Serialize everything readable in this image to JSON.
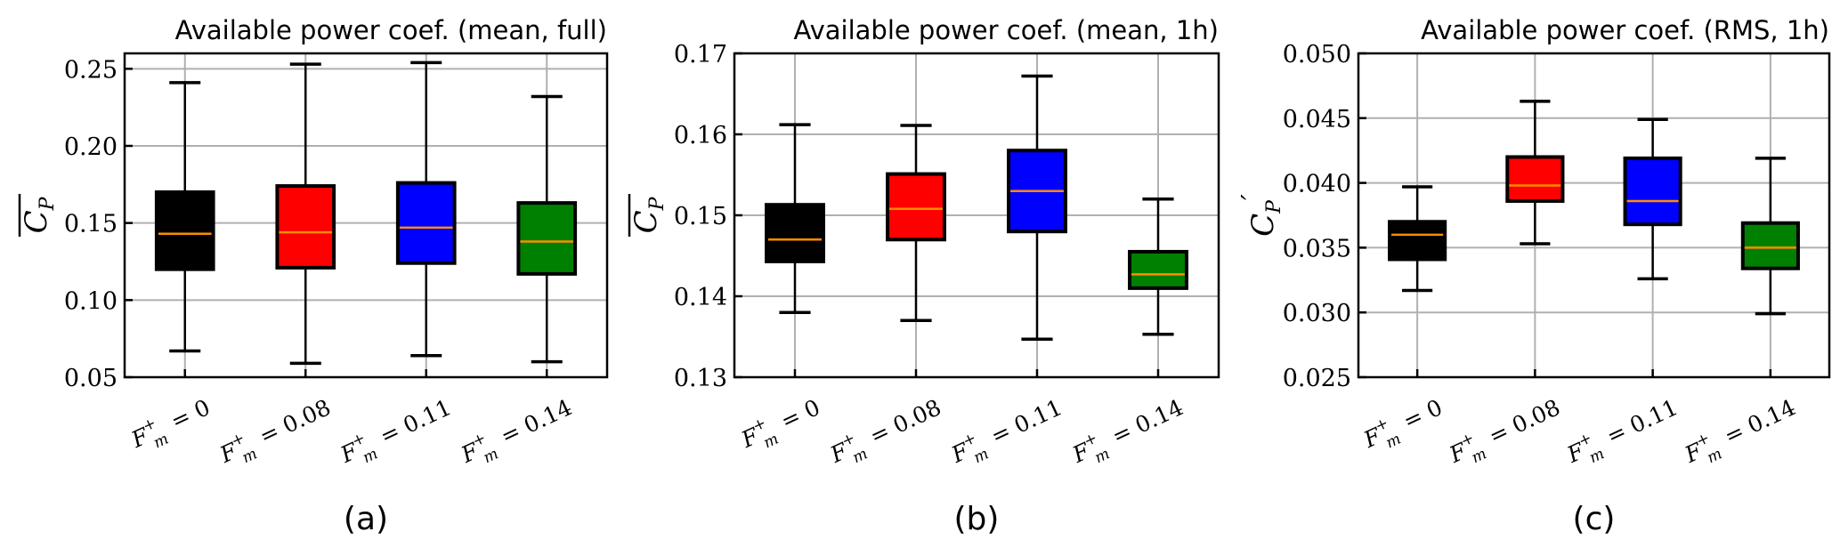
{
  "chart_data": [
    {
      "type": "box",
      "title": "Available power coef. (mean, full)",
      "ylabel": {
        "base": "C",
        "sub": "P",
        "overline": true,
        "prime": false
      },
      "panel_label": "(a)",
      "ylim": [
        0.05,
        0.26
      ],
      "yticks": [
        "0.05",
        "0.10",
        "0.15",
        "0.20",
        "0.25"
      ],
      "grid": true,
      "categories": [
        {
          "sym": "F",
          "sub": "m",
          "sup": "+",
          "value": "= 0"
        },
        {
          "sym": "F",
          "sub": "m",
          "sup": "+",
          "value": "= 0.08"
        },
        {
          "sym": "F",
          "sub": "m",
          "sup": "+",
          "value": "= 0.11"
        },
        {
          "sym": "F",
          "sub": "m",
          "sup": "+",
          "value": "= 0.14"
        }
      ],
      "series": [
        {
          "color": "#000000",
          "whislo": 0.067,
          "q1": 0.12,
          "median": 0.143,
          "q3": 0.17,
          "whishi": 0.241
        },
        {
          "color": "#ff0000",
          "whislo": 0.059,
          "q1": 0.121,
          "median": 0.144,
          "q3": 0.174,
          "whishi": 0.253
        },
        {
          "color": "#0000ff",
          "whislo": 0.064,
          "q1": 0.124,
          "median": 0.147,
          "q3": 0.176,
          "whishi": 0.254
        },
        {
          "color": "#008000",
          "whislo": 0.06,
          "q1": 0.117,
          "median": 0.138,
          "q3": 0.163,
          "whishi": 0.232
        }
      ]
    },
    {
      "type": "box",
      "title": "Available power coef. (mean, 1h)",
      "ylabel": {
        "base": "C",
        "sub": "P",
        "overline": true,
        "prime": false
      },
      "panel_label": "(b)",
      "ylim": [
        0.13,
        0.17
      ],
      "yticks": [
        "0.13",
        "0.14",
        "0.15",
        "0.16",
        "0.17"
      ],
      "grid": true,
      "categories": [
        {
          "sym": "F",
          "sub": "m",
          "sup": "+",
          "value": "= 0"
        },
        {
          "sym": "F",
          "sub": "m",
          "sup": "+",
          "value": "= 0.08"
        },
        {
          "sym": "F",
          "sub": "m",
          "sup": "+",
          "value": "= 0.11"
        },
        {
          "sym": "F",
          "sub": "m",
          "sup": "+",
          "value": "= 0.14"
        }
      ],
      "series": [
        {
          "color": "#000000",
          "whislo": 0.138,
          "q1": 0.1443,
          "median": 0.147,
          "q3": 0.1513,
          "whishi": 0.1612
        },
        {
          "color": "#ff0000",
          "whislo": 0.137,
          "q1": 0.147,
          "median": 0.1508,
          "q3": 0.1551,
          "whishi": 0.1611
        },
        {
          "color": "#0000ff",
          "whislo": 0.1347,
          "q1": 0.148,
          "median": 0.153,
          "q3": 0.158,
          "whishi": 0.1672
        },
        {
          "color": "#008000",
          "whislo": 0.1353,
          "q1": 0.141,
          "median": 0.1427,
          "q3": 0.1455,
          "whishi": 0.152
        }
      ]
    },
    {
      "type": "box",
      "title": "Available power coef. (RMS, 1h)",
      "ylabel": {
        "base": "C",
        "sub": "P",
        "overline": false,
        "prime": true
      },
      "panel_label": "(c)",
      "ylim": [
        0.025,
        0.05
      ],
      "yticks": [
        "0.025",
        "0.030",
        "0.035",
        "0.040",
        "0.045",
        "0.050"
      ],
      "grid": true,
      "categories": [
        {
          "sym": "F",
          "sub": "m",
          "sup": "+",
          "value": "= 0"
        },
        {
          "sym": "F",
          "sub": "m",
          "sup": "+",
          "value": "= 0.08"
        },
        {
          "sym": "F",
          "sub": "m",
          "sup": "+",
          "value": "= 0.11"
        },
        {
          "sym": "F",
          "sub": "m",
          "sup": "+",
          "value": "= 0.14"
        }
      ],
      "series": [
        {
          "color": "#000000",
          "whislo": 0.0317,
          "q1": 0.0341,
          "median": 0.036,
          "q3": 0.037,
          "whishi": 0.0397
        },
        {
          "color": "#ff0000",
          "whislo": 0.0353,
          "q1": 0.0386,
          "median": 0.0398,
          "q3": 0.042,
          "whishi": 0.0463
        },
        {
          "color": "#0000ff",
          "whislo": 0.0326,
          "q1": 0.0368,
          "median": 0.0386,
          "q3": 0.0419,
          "whishi": 0.0449
        },
        {
          "color": "#008000",
          "whislo": 0.0299,
          "q1": 0.0334,
          "median": 0.035,
          "q3": 0.0369,
          "whishi": 0.0419
        }
      ]
    }
  ],
  "median_color": "#ff8c00"
}
